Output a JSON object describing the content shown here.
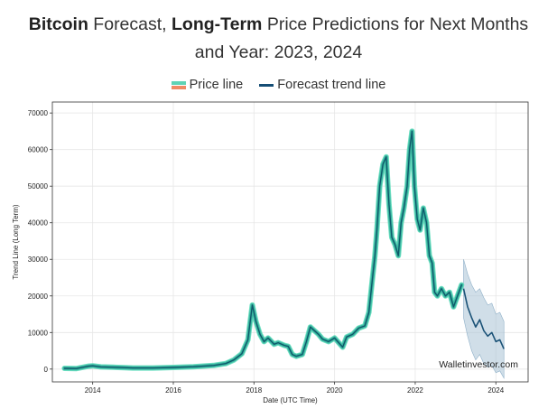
{
  "page": {
    "title_bold_1": "Bitcoin",
    "title_text_1": " Forecast, ",
    "title_bold_2": "Long-Term",
    "title_text_2": " Price Predictions for Next Months",
    "title_line_2": "and Year: 2023, 2024"
  },
  "legend": {
    "price_label": "Price line",
    "trend_label": "Forecast trend line"
  },
  "watermark": "Walletinvestor.com",
  "colors": {
    "price_fill": "#3bb5a0",
    "price_edge": "#6ee0c2",
    "price_core": "#0d5a6a",
    "forecast_line": "#1b5277",
    "forecast_band": "#a9c3d6",
    "grid": "#e6e6e6"
  },
  "chart_data": {
    "type": "line",
    "title": "",
    "xlabel": "Date (UTC Time)",
    "ylabel": "Trend Line (Long Term)",
    "xlim": [
      2013.0,
      2024.8
    ],
    "ylim": [
      -3500,
      73000
    ],
    "x_ticks": [
      2014,
      2016,
      2018,
      2020,
      2022,
      2024
    ],
    "y_ticks": [
      0,
      10000,
      20000,
      30000,
      40000,
      50000,
      60000,
      70000
    ],
    "grid": true,
    "legend_position": "top-center",
    "series": [
      {
        "name": "Price line",
        "x": [
          2013.3,
          2013.6,
          2013.9,
          2014.0,
          2014.2,
          2014.5,
          2014.8,
          2015.0,
          2015.5,
          2016.0,
          2016.5,
          2017.0,
          2017.3,
          2017.5,
          2017.7,
          2017.85,
          2017.96,
          2018.05,
          2018.15,
          2018.25,
          2018.35,
          2018.5,
          2018.6,
          2018.75,
          2018.85,
          2018.95,
          2019.05,
          2019.2,
          2019.3,
          2019.4,
          2019.5,
          2019.6,
          2019.7,
          2019.85,
          2020.0,
          2020.2,
          2020.3,
          2020.45,
          2020.6,
          2020.75,
          2020.85,
          2020.95,
          2021.0,
          2021.05,
          2021.12,
          2021.2,
          2021.28,
          2021.35,
          2021.42,
          2021.5,
          2021.58,
          2021.65,
          2021.72,
          2021.8,
          2021.86,
          2021.92,
          2021.98,
          2022.05,
          2022.12,
          2022.2,
          2022.28,
          2022.35,
          2022.42,
          2022.48,
          2022.55,
          2022.65,
          2022.75,
          2022.85,
          2022.95,
          2023.05,
          2023.15
        ],
        "values": [
          200,
          150,
          800,
          900,
          600,
          500,
          400,
          300,
          300,
          450,
          650,
          1000,
          1500,
          2500,
          4200,
          8000,
          17500,
          13000,
          9500,
          7500,
          8500,
          6800,
          7200,
          6500,
          6200,
          4000,
          3500,
          4000,
          7500,
          11500,
          10500,
          9500,
          8200,
          7500,
          8500,
          6000,
          8800,
          9500,
          11200,
          11800,
          15500,
          26000,
          31000,
          38000,
          50000,
          56000,
          58000,
          45000,
          36000,
          34000,
          31000,
          40000,
          44000,
          50000,
          60000,
          65000,
          50000,
          41000,
          38000,
          44000,
          40000,
          31000,
          29000,
          21000,
          20000,
          22000,
          20000,
          21000,
          17000,
          20000,
          23000
        ]
      },
      {
        "name": "Forecast trend line",
        "x": [
          2023.2,
          2023.3,
          2023.4,
          2023.5,
          2023.6,
          2023.7,
          2023.8,
          2023.9,
          2024.0,
          2024.1,
          2024.2
        ],
        "values": [
          22000,
          17000,
          14000,
          11500,
          13500,
          10500,
          9000,
          10000,
          7500,
          8000,
          5500
        ],
        "band_upper": [
          30000,
          26000,
          23000,
          21000,
          22000,
          19500,
          17500,
          18000,
          15000,
          15500,
          13000
        ],
        "band_lower": [
          14000,
          9000,
          5000,
          2500,
          4000,
          1500,
          500,
          1000,
          -1000,
          -500,
          -2500
        ]
      }
    ]
  }
}
